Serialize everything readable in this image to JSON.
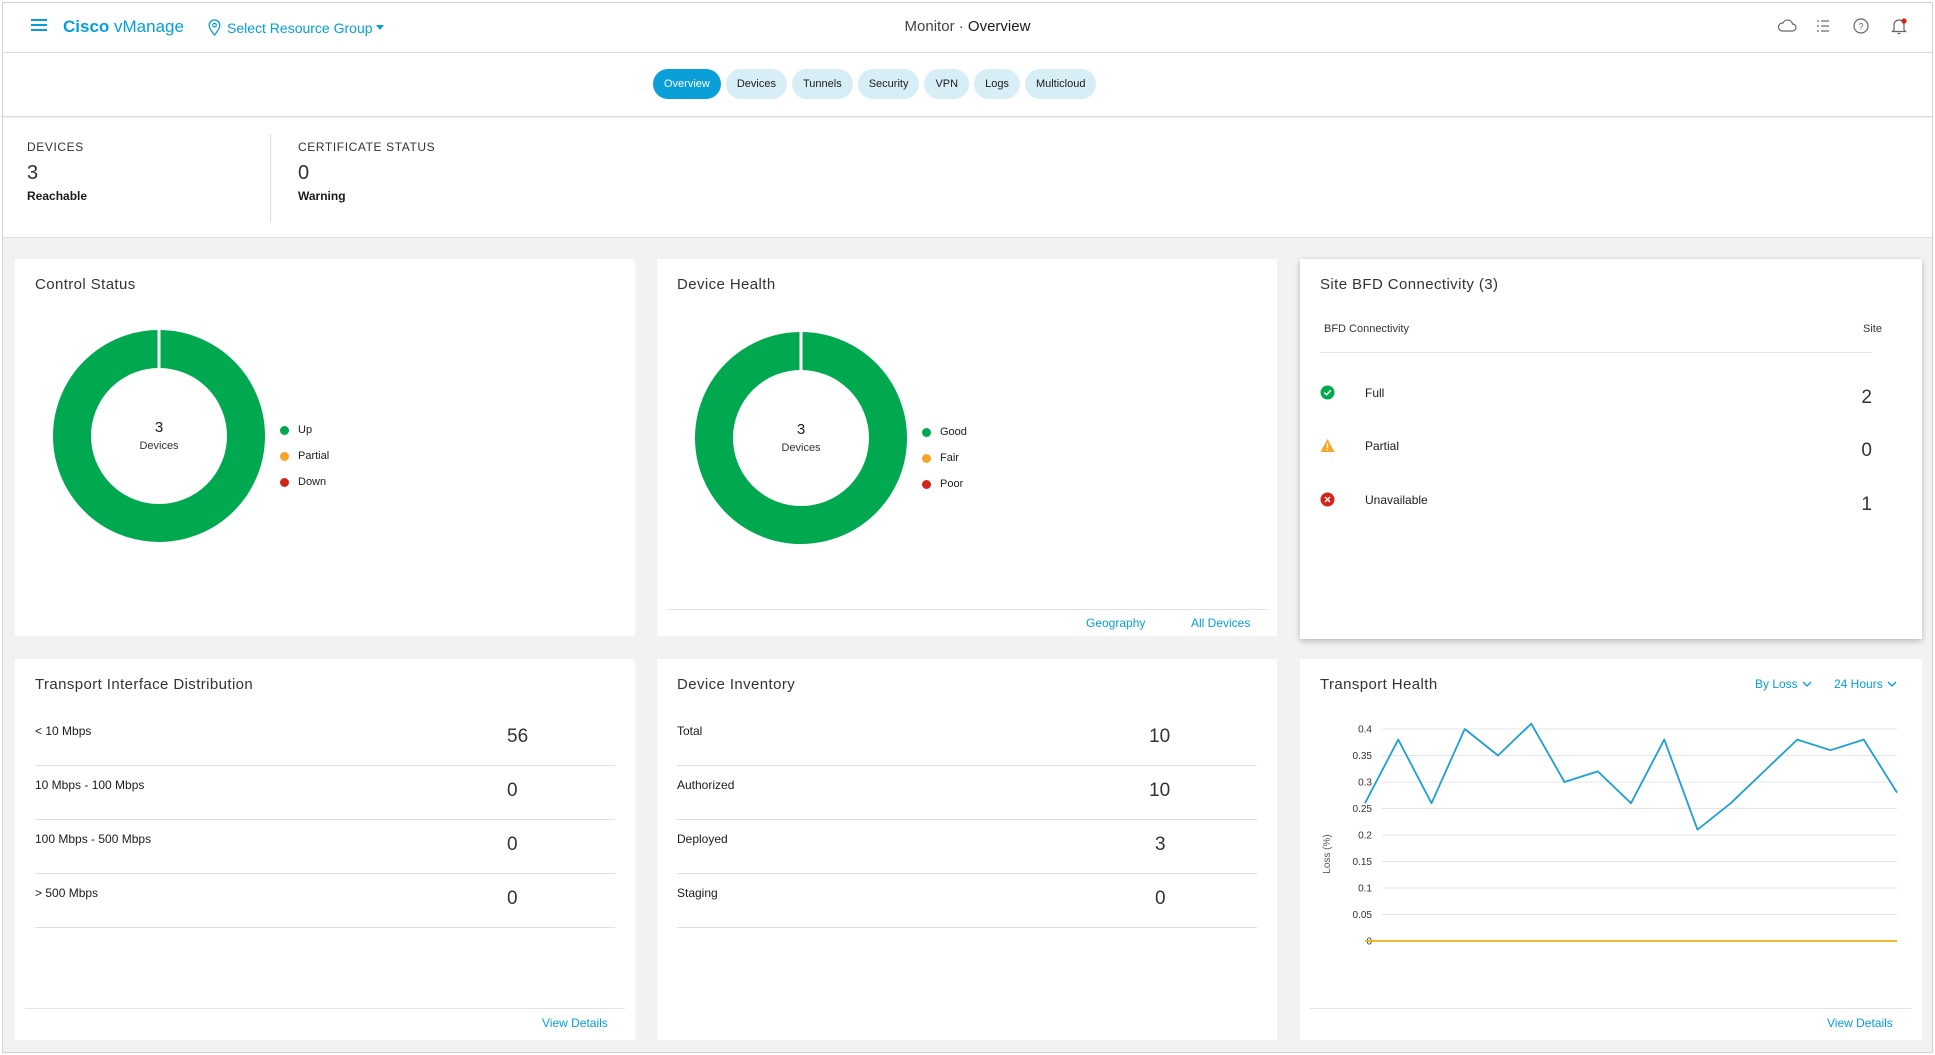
{
  "header": {
    "brand_bold": "Cisco",
    "brand_rest": " vManage",
    "resource_group": "Select Resource Group",
    "breadcrumb_parent": "Monitor",
    "breadcrumb_sep": " · ",
    "breadcrumb_current": "Overview"
  },
  "tabs": [
    "Overview",
    "Devices",
    "Tunnels",
    "Security",
    "VPN",
    "Logs",
    "Multicloud"
  ],
  "summary": {
    "devices": {
      "label": "DEVICES",
      "value": "3",
      "sub": "Reachable"
    },
    "certificate": {
      "label": "CERTIFICATE STATUS",
      "value": "0",
      "sub": "Warning"
    }
  },
  "control_status": {
    "title": "Control Status",
    "center_value": "3",
    "center_label": "Devices",
    "legend": [
      {
        "label": "Up",
        "color": "#00a94f"
      },
      {
        "label": "Partial",
        "color": "#f5a623"
      },
      {
        "label": "Down",
        "color": "#d0271d"
      }
    ]
  },
  "device_health": {
    "title": "Device Health",
    "center_value": "3",
    "center_label": "Devices",
    "legend": [
      {
        "label": "Good",
        "color": "#00a94f"
      },
      {
        "label": "Fair",
        "color": "#f5a623"
      },
      {
        "label": "Poor",
        "color": "#d0271d"
      }
    ],
    "links": {
      "geography": "Geography",
      "all_devices": "All Devices"
    }
  },
  "site_bfd": {
    "title": "Site BFD Connectivity (3)",
    "col_connectivity": "BFD Connectivity",
    "col_site": "Site",
    "rows": [
      {
        "label": "Full",
        "value": "2",
        "icon": "check-circle-icon",
        "color": "#00a94f"
      },
      {
        "label": "Partial",
        "value": "0",
        "icon": "warning-triangle-icon",
        "color": "#f5a623"
      },
      {
        "label": "Unavailable",
        "value": "1",
        "icon": "error-circle-icon",
        "color": "#d0271d"
      }
    ]
  },
  "transport_interface": {
    "title": "Transport Interface Distribution",
    "rows": [
      {
        "label": "< 10 Mbps",
        "value": "56"
      },
      {
        "label": "10 Mbps - 100 Mbps",
        "value": "0"
      },
      {
        "label": "100 Mbps - 500 Mbps",
        "value": "0"
      },
      {
        "label": "> 500 Mbps",
        "value": "0"
      }
    ],
    "view_details": "View Details"
  },
  "device_inventory": {
    "title": "Device Inventory",
    "rows": [
      {
        "label": "Total",
        "value": "10"
      },
      {
        "label": "Authorized",
        "value": "10"
      },
      {
        "label": "Deployed",
        "value": "3"
      },
      {
        "label": "Staging",
        "value": "0"
      }
    ]
  },
  "transport_health": {
    "title": "Transport Health",
    "dropdown_metric": "By Loss",
    "dropdown_range": "24 Hours",
    "view_details": "View Details"
  },
  "chart_data": {
    "type": "line",
    "ylabel": "Loss (%)",
    "ylim": [
      0,
      0.4
    ],
    "yticks": [
      "0",
      "0.05",
      "0.1",
      "0.15",
      "0.2",
      "0.25",
      "0.3",
      "0.35",
      "0.4"
    ],
    "grid": true,
    "series": [
      {
        "color": "#1e9fd6",
        "values": [
          0.26,
          0.38,
          0.26,
          0.4,
          0.35,
          0.41,
          0.3,
          0.32,
          0.26,
          0.38,
          0.21,
          0.26,
          0.32,
          0.38,
          0.36,
          0.38,
          0.28
        ]
      },
      {
        "color": "#f1b10f",
        "values": [
          0,
          0,
          0,
          0,
          0,
          0,
          0,
          0,
          0,
          0,
          0,
          0,
          0,
          0,
          0,
          0,
          0
        ]
      }
    ]
  }
}
